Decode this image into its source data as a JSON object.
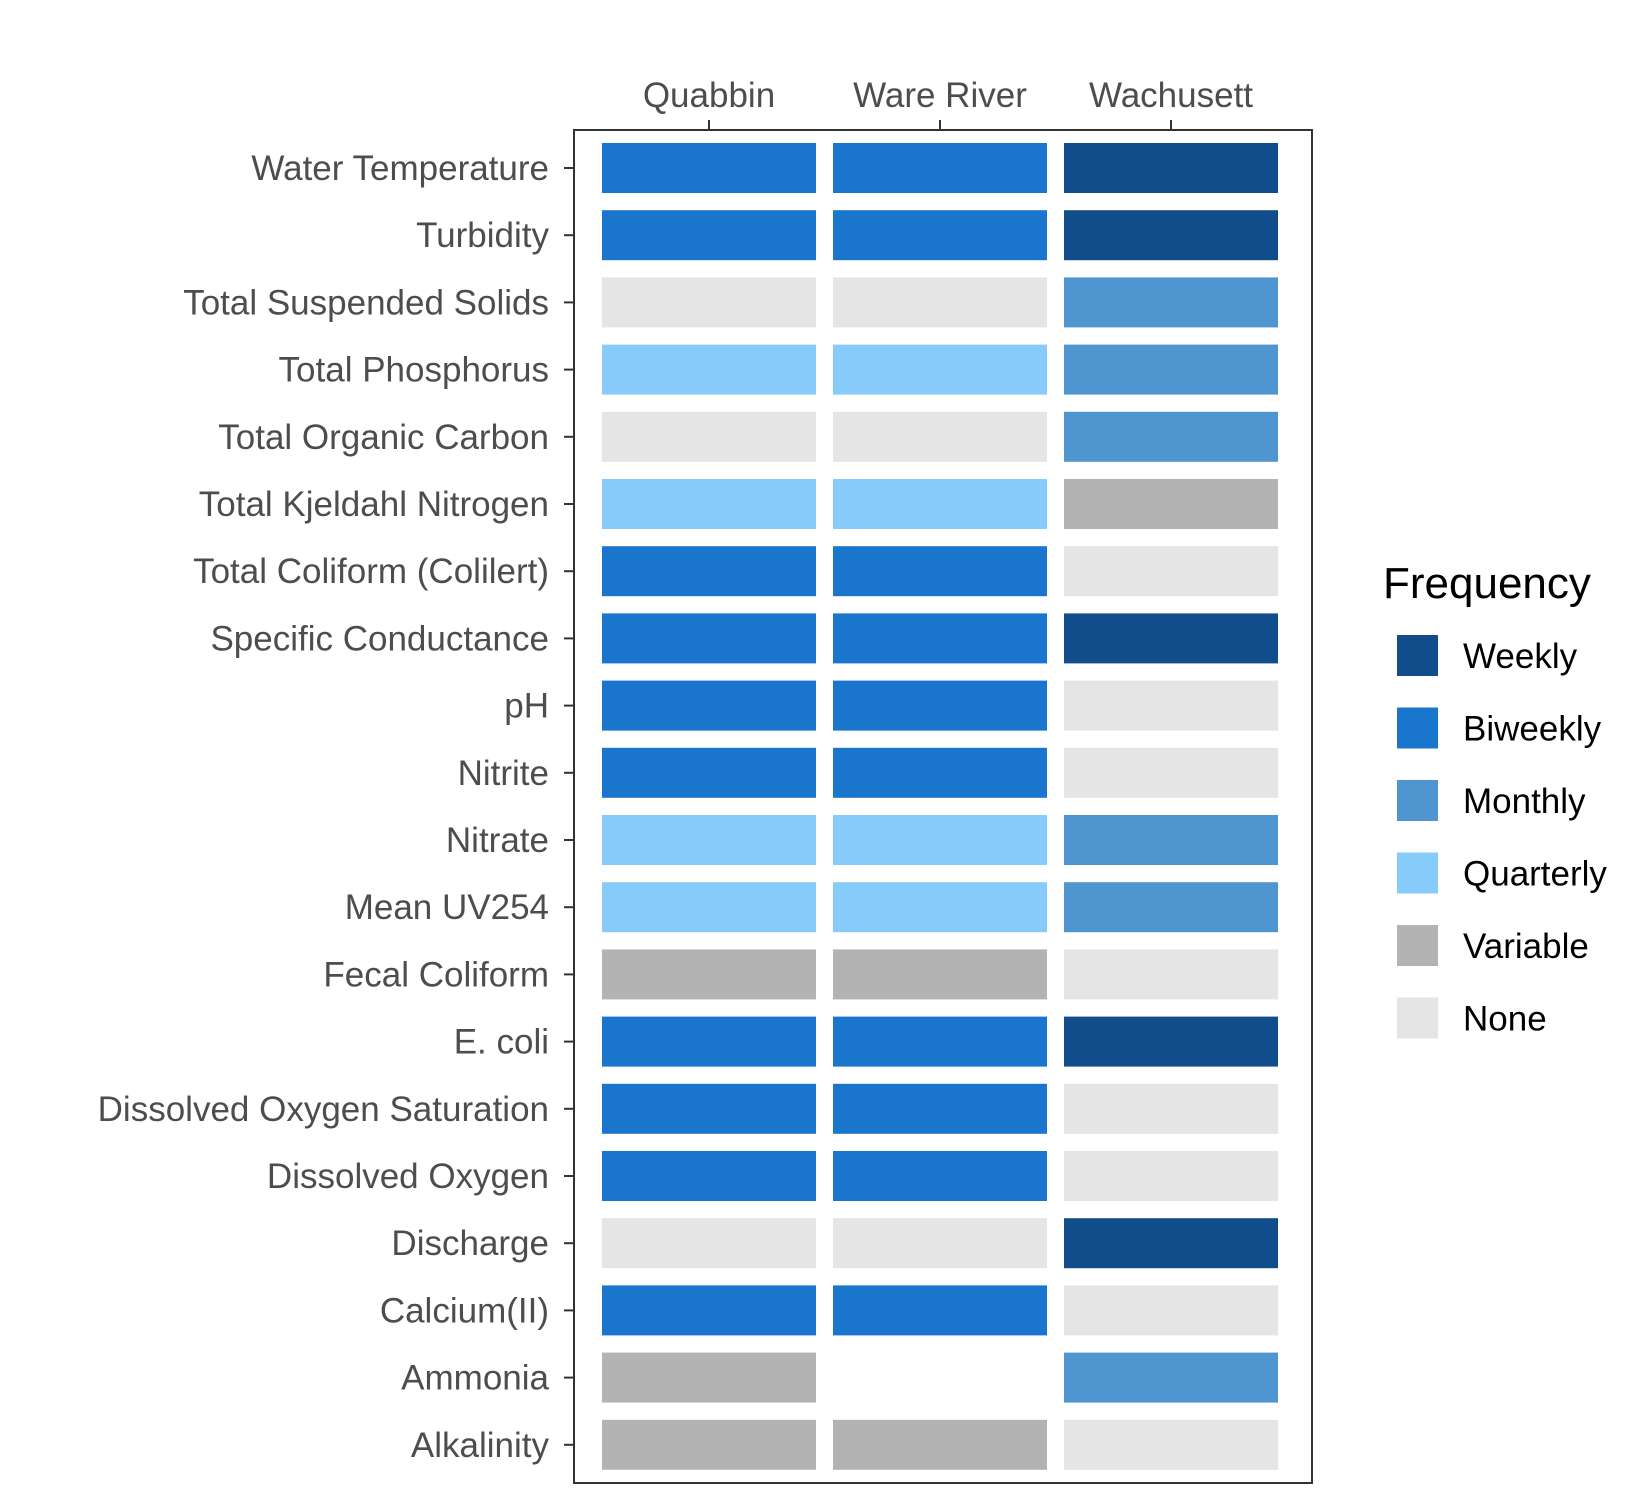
{
  "chart_data": {
    "type": "heatmap",
    "columns": [
      "Quabbin",
      "Ware River",
      "Wachusett"
    ],
    "rows": [
      "Water Temperature",
      "Turbidity",
      "Total Suspended Solids",
      "Total Phosphorus",
      "Total Organic Carbon",
      "Total Kjeldahl Nitrogen",
      "Total Coliform (Colilert)",
      "Specific Conductance",
      "pH",
      "Nitrite",
      "Nitrate",
      "Mean UV254",
      "Fecal Coliform",
      "E. coli",
      "Dissolved Oxygen Saturation",
      "Dissolved Oxygen",
      "Discharge",
      "Calcium(II)",
      "Ammonia",
      "Alkalinity"
    ],
    "values": [
      [
        "Biweekly",
        "Biweekly",
        "Weekly"
      ],
      [
        "Biweekly",
        "Biweekly",
        "Weekly"
      ],
      [
        "None",
        "None",
        "Monthly"
      ],
      [
        "Quarterly",
        "Quarterly",
        "Monthly"
      ],
      [
        "None",
        "None",
        "Monthly"
      ],
      [
        "Quarterly",
        "Quarterly",
        "Variable"
      ],
      [
        "Biweekly",
        "Biweekly",
        "None"
      ],
      [
        "Biweekly",
        "Biweekly",
        "Weekly"
      ],
      [
        "Biweekly",
        "Biweekly",
        "None"
      ],
      [
        "Biweekly",
        "Biweekly",
        "None"
      ],
      [
        "Quarterly",
        "Quarterly",
        "Monthly"
      ],
      [
        "Quarterly",
        "Quarterly",
        "Monthly"
      ],
      [
        "Variable",
        "Variable",
        "None"
      ],
      [
        "Biweekly",
        "Biweekly",
        "Weekly"
      ],
      [
        "Biweekly",
        "Biweekly",
        "None"
      ],
      [
        "Biweekly",
        "Biweekly",
        "None"
      ],
      [
        "None",
        "None",
        "Weekly"
      ],
      [
        "Biweekly",
        "Biweekly",
        "None"
      ],
      [
        "Variable",
        null,
        "Monthly"
      ],
      [
        "Variable",
        "Variable",
        "None"
      ]
    ],
    "legend": {
      "title": "Frequency",
      "position": "right",
      "entries": [
        {
          "label": "Weekly",
          "color": "#114d8a"
        },
        {
          "label": "Biweekly",
          "color": "#1a75cc"
        },
        {
          "label": "Monthly",
          "color": "#4f95cf"
        },
        {
          "label": "Quarterly",
          "color": "#87cbfa"
        },
        {
          "label": "Variable",
          "color": "#b3b3b3"
        },
        {
          "label": "None",
          "color": "#e5e5e5"
        }
      ]
    },
    "x_axis_position": "top",
    "grid": false
  }
}
